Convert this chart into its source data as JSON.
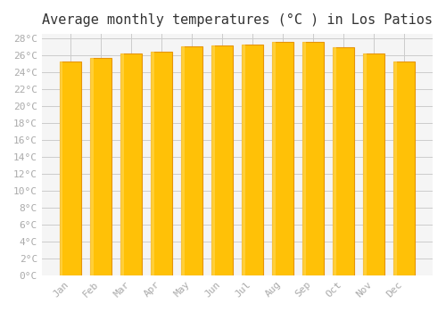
{
  "title": "Average monthly temperatures (°C ) in Los Patios",
  "months": [
    "Jan",
    "Feb",
    "Mar",
    "Apr",
    "May",
    "Jun",
    "Jul",
    "Aug",
    "Sep",
    "Oct",
    "Nov",
    "Dec"
  ],
  "values": [
    25.2,
    25.7,
    26.2,
    26.4,
    27.0,
    27.1,
    27.3,
    27.6,
    27.6,
    26.9,
    26.2,
    25.3
  ],
  "bar_color_top": "#FFC107",
  "bar_color_bottom": "#FFB300",
  "bar_edge_color": "#E6950A",
  "background_color": "#FFFFFF",
  "plot_bg_color": "#F5F5F5",
  "grid_color": "#CCCCCC",
  "ytick_interval": 2,
  "ymin": 0,
  "ymax": 28,
  "title_fontsize": 11,
  "tick_fontsize": 8,
  "tick_color": "#AAAAAA",
  "xlabel_rotation": 45
}
